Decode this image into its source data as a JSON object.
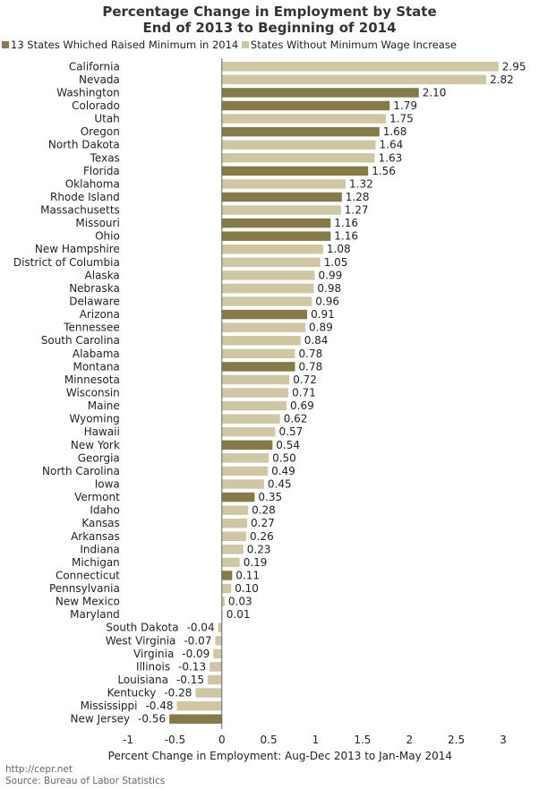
{
  "chart_data": {
    "type": "bar",
    "orientation": "horizontal",
    "title": "Percentage Change in Employment by State",
    "subtitle": "End of 2013 to Beginning of 2014",
    "xlabel": "Percent Change in Employment: Aug-Dec 2013 to Jan-May 2014",
    "xlim": [
      -1,
      3
    ],
    "xticks": [
      "-1",
      "-0.5",
      "0",
      "0.5",
      "1",
      "1.5",
      "2",
      "2.5",
      "3"
    ],
    "tick_values": [
      -1,
      -0.5,
      0,
      0.5,
      1,
      1.5,
      2,
      2.5,
      3
    ],
    "grid": false,
    "legend": [
      {
        "label": "13 States Whiched Raised Minimum in 2014",
        "color": "#857a48"
      },
      {
        "label": "States Without Minimum Wage Increase",
        "color": "#cfc6a4"
      }
    ],
    "categories": [
      "California",
      "Nevada",
      "Washington",
      "Colorado",
      "Utah",
      "Oregon",
      "North Dakota",
      "Texas",
      "Florida",
      "Oklahoma",
      "Rhode Island",
      "Massachusetts",
      "Missouri",
      "Ohio",
      "New Hampshire",
      "District of Columbia",
      "Alaska",
      "Nebraska",
      "Delaware",
      "Arizona",
      "Tennessee",
      "South Carolina",
      "Alabama",
      "Montana",
      "Minnesota",
      "Wisconsin",
      "Maine",
      "Wyoming",
      "Hawaii",
      "New York",
      "Georgia",
      "North Carolina",
      "Iowa",
      "Vermont",
      "Idaho",
      "Kansas",
      "Arkansas",
      "Indiana",
      "Michigan",
      "Connecticut",
      "Pennsylvania",
      "New Mexico",
      "Maryland",
      "South Dakota",
      "West Virginia",
      "Virginia",
      "Illinois",
      "Louisiana",
      "Kentucky",
      "Mississippi",
      "New Jersey"
    ],
    "values": [
      2.95,
      2.82,
      2.1,
      1.79,
      1.75,
      1.68,
      1.64,
      1.63,
      1.56,
      1.32,
      1.28,
      1.27,
      1.16,
      1.16,
      1.08,
      1.05,
      0.99,
      0.98,
      0.96,
      0.91,
      0.89,
      0.84,
      0.78,
      0.78,
      0.72,
      0.71,
      0.69,
      0.62,
      0.57,
      0.54,
      0.5,
      0.49,
      0.45,
      0.35,
      0.28,
      0.27,
      0.26,
      0.23,
      0.19,
      0.11,
      0.1,
      0.03,
      0.01,
      -0.04,
      -0.07,
      -0.09,
      -0.13,
      -0.15,
      -0.28,
      -0.48,
      -0.56
    ],
    "value_labels": [
      "2.95",
      "2.82",
      "2.10",
      "1.79",
      "1.75",
      "1.68",
      "1.64",
      "1.63",
      "1.56",
      "1.32",
      "1.28",
      "1.27",
      "1.16",
      "1.16",
      "1.08",
      "1.05",
      "0.99",
      "0.98",
      "0.96",
      "0.91",
      "0.89",
      "0.84",
      "0.78",
      "0.78",
      "0.72",
      "0.71",
      "0.69",
      "0.62",
      "0.57",
      "0.54",
      "0.50",
      "0.49",
      "0.45",
      "0.35",
      "0.28",
      "0.27",
      "0.26",
      "0.23",
      "0.19",
      "0.11",
      "0.10",
      "0.03",
      "0.01",
      "-0.04",
      "-0.07",
      "-0.09",
      "-0.13",
      "-0.15",
      "-0.28",
      "-0.48",
      "-0.56"
    ],
    "raised_minimum": [
      false,
      false,
      true,
      true,
      false,
      true,
      false,
      false,
      true,
      false,
      true,
      false,
      true,
      true,
      false,
      false,
      false,
      false,
      false,
      true,
      false,
      false,
      false,
      true,
      false,
      false,
      false,
      false,
      false,
      true,
      false,
      false,
      false,
      true,
      false,
      false,
      false,
      false,
      false,
      true,
      false,
      false,
      false,
      false,
      false,
      false,
      false,
      false,
      false,
      false,
      true
    ]
  },
  "footer": {
    "url": "http://cepr.net",
    "source": "Source: Bureau of Labor Statistics"
  }
}
